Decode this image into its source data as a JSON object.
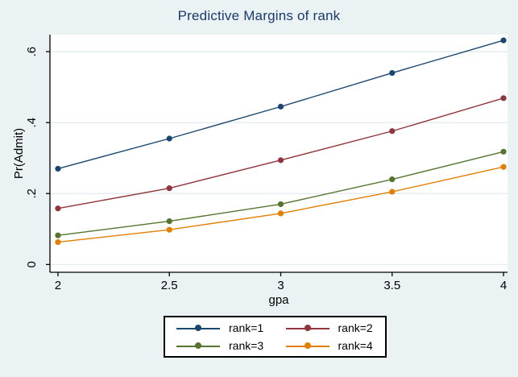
{
  "colors": {
    "background": "#eaf2f3",
    "plot_background": "#ffffff",
    "grid": "#dfe9ed",
    "axis": "#000000",
    "title_text": "#1a3a6e",
    "tick_text": "#000000"
  },
  "chart_data": {
    "type": "line",
    "title": "Predictive Margins of rank",
    "xlabel": "gpa",
    "ylabel": "Pr(Admit)",
    "x": [
      2,
      2.5,
      3,
      3.5,
      4
    ],
    "xtick_labels": [
      "2",
      "2.5",
      "3",
      "3.5",
      "4"
    ],
    "yticks": [
      {
        "value": 0,
        "label": "0"
      },
      {
        "value": 0.2,
        "label": ".2"
      },
      {
        "value": 0.4,
        "label": ".4"
      },
      {
        "value": 0.6,
        "label": ".6"
      }
    ],
    "xlim": [
      1.964,
      4.018
    ],
    "ylim": [
      -0.022,
      0.648
    ],
    "grid": true,
    "legend_position": "bottom",
    "series": [
      {
        "name": "rank=1",
        "color": "#1a476f",
        "values": [
          0.27,
          0.355,
          0.445,
          0.54,
          0.632
        ]
      },
      {
        "name": "rank=2",
        "color": "#90353b",
        "values": [
          0.158,
          0.215,
          0.294,
          0.376,
          0.469
        ]
      },
      {
        "name": "rank=3",
        "color": "#55752f",
        "values": [
          0.082,
          0.122,
          0.17,
          0.24,
          0.318
        ]
      },
      {
        "name": "rank=4",
        "color": "#e37e00",
        "values": [
          0.063,
          0.098,
          0.144,
          0.205,
          0.275
        ]
      }
    ]
  }
}
